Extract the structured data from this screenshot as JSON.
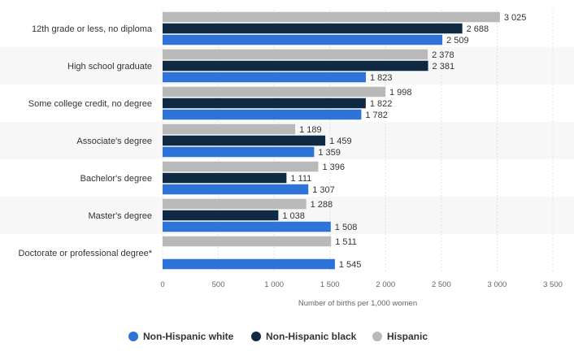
{
  "chart_data": {
    "type": "bar",
    "orientation": "horizontal",
    "categories": [
      "12th grade or less, no diploma",
      "High school graduate",
      "Some college credit, no degree",
      "Associate's degree",
      "Bachelor's degree",
      "Master's degree",
      "Doctorate or professional degree*"
    ],
    "series": [
      {
        "name": "Hispanic",
        "color": "#b9b9b9",
        "values": [
          3025,
          2378,
          1998,
          1189,
          1396,
          1288,
          1511
        ],
        "labels": [
          "3 025",
          "2 378",
          "1 998",
          "1 189",
          "1 396",
          "1 288",
          "1 511"
        ]
      },
      {
        "name": "Non-Hispanic black",
        "color": "#0f2a42",
        "values": [
          2688,
          2381,
          1822,
          1459,
          1111,
          1038,
          null
        ],
        "labels": [
          "2 688",
          "2 381",
          "1 822",
          "1 459",
          "1 111",
          "1 038",
          ""
        ]
      },
      {
        "name": "Non-Hispanic white",
        "color": "#2d73d9",
        "values": [
          2509,
          1823,
          1782,
          1359,
          1307,
          1508,
          1545
        ],
        "labels": [
          "2 509",
          "1 823",
          "1 782",
          "1 359",
          "1 307",
          "1 508",
          "1 545"
        ]
      }
    ],
    "xlabel": "Number of births per 1,000 women",
    "xlim": [
      0,
      3500
    ],
    "ticks": [
      0,
      500,
      1000,
      1500,
      2000,
      2500,
      3000,
      3500
    ],
    "tick_labels": [
      "0",
      "500",
      "1 000",
      "1 500",
      "2 000",
      "2 500",
      "3 000",
      "3 500"
    ],
    "grid": true,
    "legend_position": "bottom",
    "legend": [
      {
        "label": "Non-Hispanic white",
        "color": "#2d73d9"
      },
      {
        "label": "Non-Hispanic black",
        "color": "#0f2a42"
      },
      {
        "label": "Hispanic",
        "color": "#b9b9b9"
      }
    ]
  }
}
